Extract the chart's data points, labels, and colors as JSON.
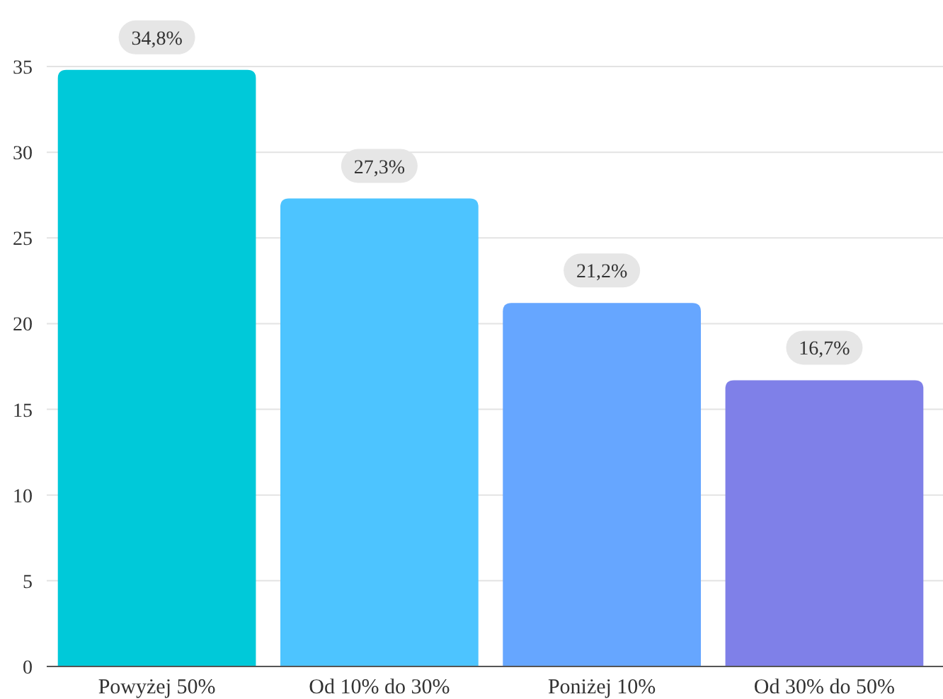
{
  "chart_data": {
    "type": "bar",
    "categories": [
      "Powyżej 50%",
      "Od 10% do 30%",
      "Poniżej 10%",
      "Od 30% do 50%"
    ],
    "values": [
      34.8,
      27.3,
      21.2,
      16.7
    ],
    "colors": [
      "#00c9d9",
      "#4dc4ff",
      "#66a6ff",
      "#7f80e8"
    ],
    "value_labels": [
      "34,8%",
      "27,3%",
      "21,2%",
      "16,7%"
    ],
    "ylim": [
      0,
      35
    ],
    "yticks": [
      0,
      5,
      10,
      15,
      20,
      25,
      30,
      35
    ],
    "grid": "y"
  }
}
